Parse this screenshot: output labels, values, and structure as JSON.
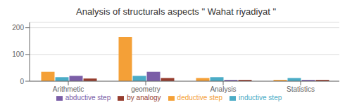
{
  "chart_data": {
    "type": "bar",
    "title": "Analysis of structurals aspects \" Wahat riyadiyat \"",
    "categories": [
      "Arithmetic",
      "geometry",
      "Analysis",
      "Statistics"
    ],
    "series": [
      {
        "name": "deductive step",
        "color": "#F4A037",
        "values": [
          35,
          165,
          12,
          5
        ]
      },
      {
        "name": "inductive step",
        "color": "#4BACC6",
        "values": [
          15,
          20,
          15,
          12
        ]
      },
      {
        "name": "abductive step",
        "color": "#7B5EA7",
        "values": [
          20,
          35,
          5,
          5
        ]
      },
      {
        "name": "by analogy",
        "color": "#963D2E",
        "values": [
          10,
          12,
          5,
          5
        ]
      }
    ],
    "ylim": [
      0,
      220
    ],
    "yticks": [
      0,
      100,
      200
    ],
    "grid": true,
    "legend": "bottom"
  }
}
